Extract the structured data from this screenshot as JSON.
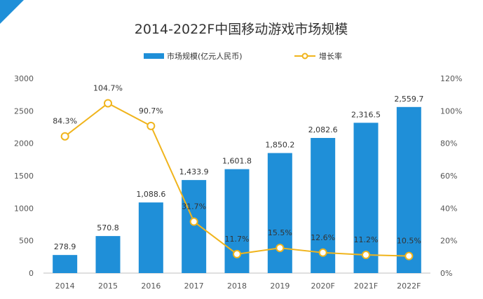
{
  "chart_data": {
    "type": "bar",
    "title": "2014-2022F中国移动游戏市场规模",
    "categories": [
      "2014",
      "2015",
      "2016",
      "2017",
      "2018",
      "2019",
      "2020F",
      "2021F",
      "2022F"
    ],
    "series": [
      {
        "name": "市场规模(亿元人民币)",
        "type": "bar",
        "axis": "left",
        "values": [
          278.9,
          570.8,
          1088.6,
          1433.9,
          1601.8,
          1850.2,
          2082.6,
          2316.5,
          2559.7
        ],
        "labels": [
          "278.9",
          "570.8",
          "1,088.6",
          "1,433.9",
          "1,601.8",
          "1,850.2",
          "2,082.6",
          "2,316.5",
          "2,559.7"
        ]
      },
      {
        "name": "增长率",
        "type": "line",
        "axis": "right",
        "values": [
          84.3,
          104.7,
          90.7,
          31.7,
          11.7,
          15.5,
          12.6,
          11.2,
          10.5
        ],
        "labels": [
          "84.3%",
          "104.7%",
          "90.7%",
          "31.7%",
          "11.7%",
          "15.5%",
          "12.6%",
          "11.2%",
          "10.5%"
        ]
      }
    ],
    "y_left": {
      "min": 0,
      "max": 3000,
      "ticks": [
        0,
        500,
        1000,
        1500,
        2000,
        2500,
        3000
      ],
      "tick_labels": [
        "0",
        "500",
        "1000",
        "1500",
        "2000",
        "2500",
        "3000"
      ]
    },
    "y_right": {
      "min": 0,
      "max": 120,
      "ticks": [
        0,
        20,
        40,
        60,
        80,
        100,
        120
      ],
      "tick_labels": [
        "0%",
        "20%",
        "40%",
        "60%",
        "80%",
        "100%",
        "120%"
      ]
    },
    "grid": false,
    "legend_position": "top-center"
  },
  "colors": {
    "bar": "#1f8fd8",
    "line": "#f0b41c",
    "corner_accent": "#1f8fd8"
  }
}
